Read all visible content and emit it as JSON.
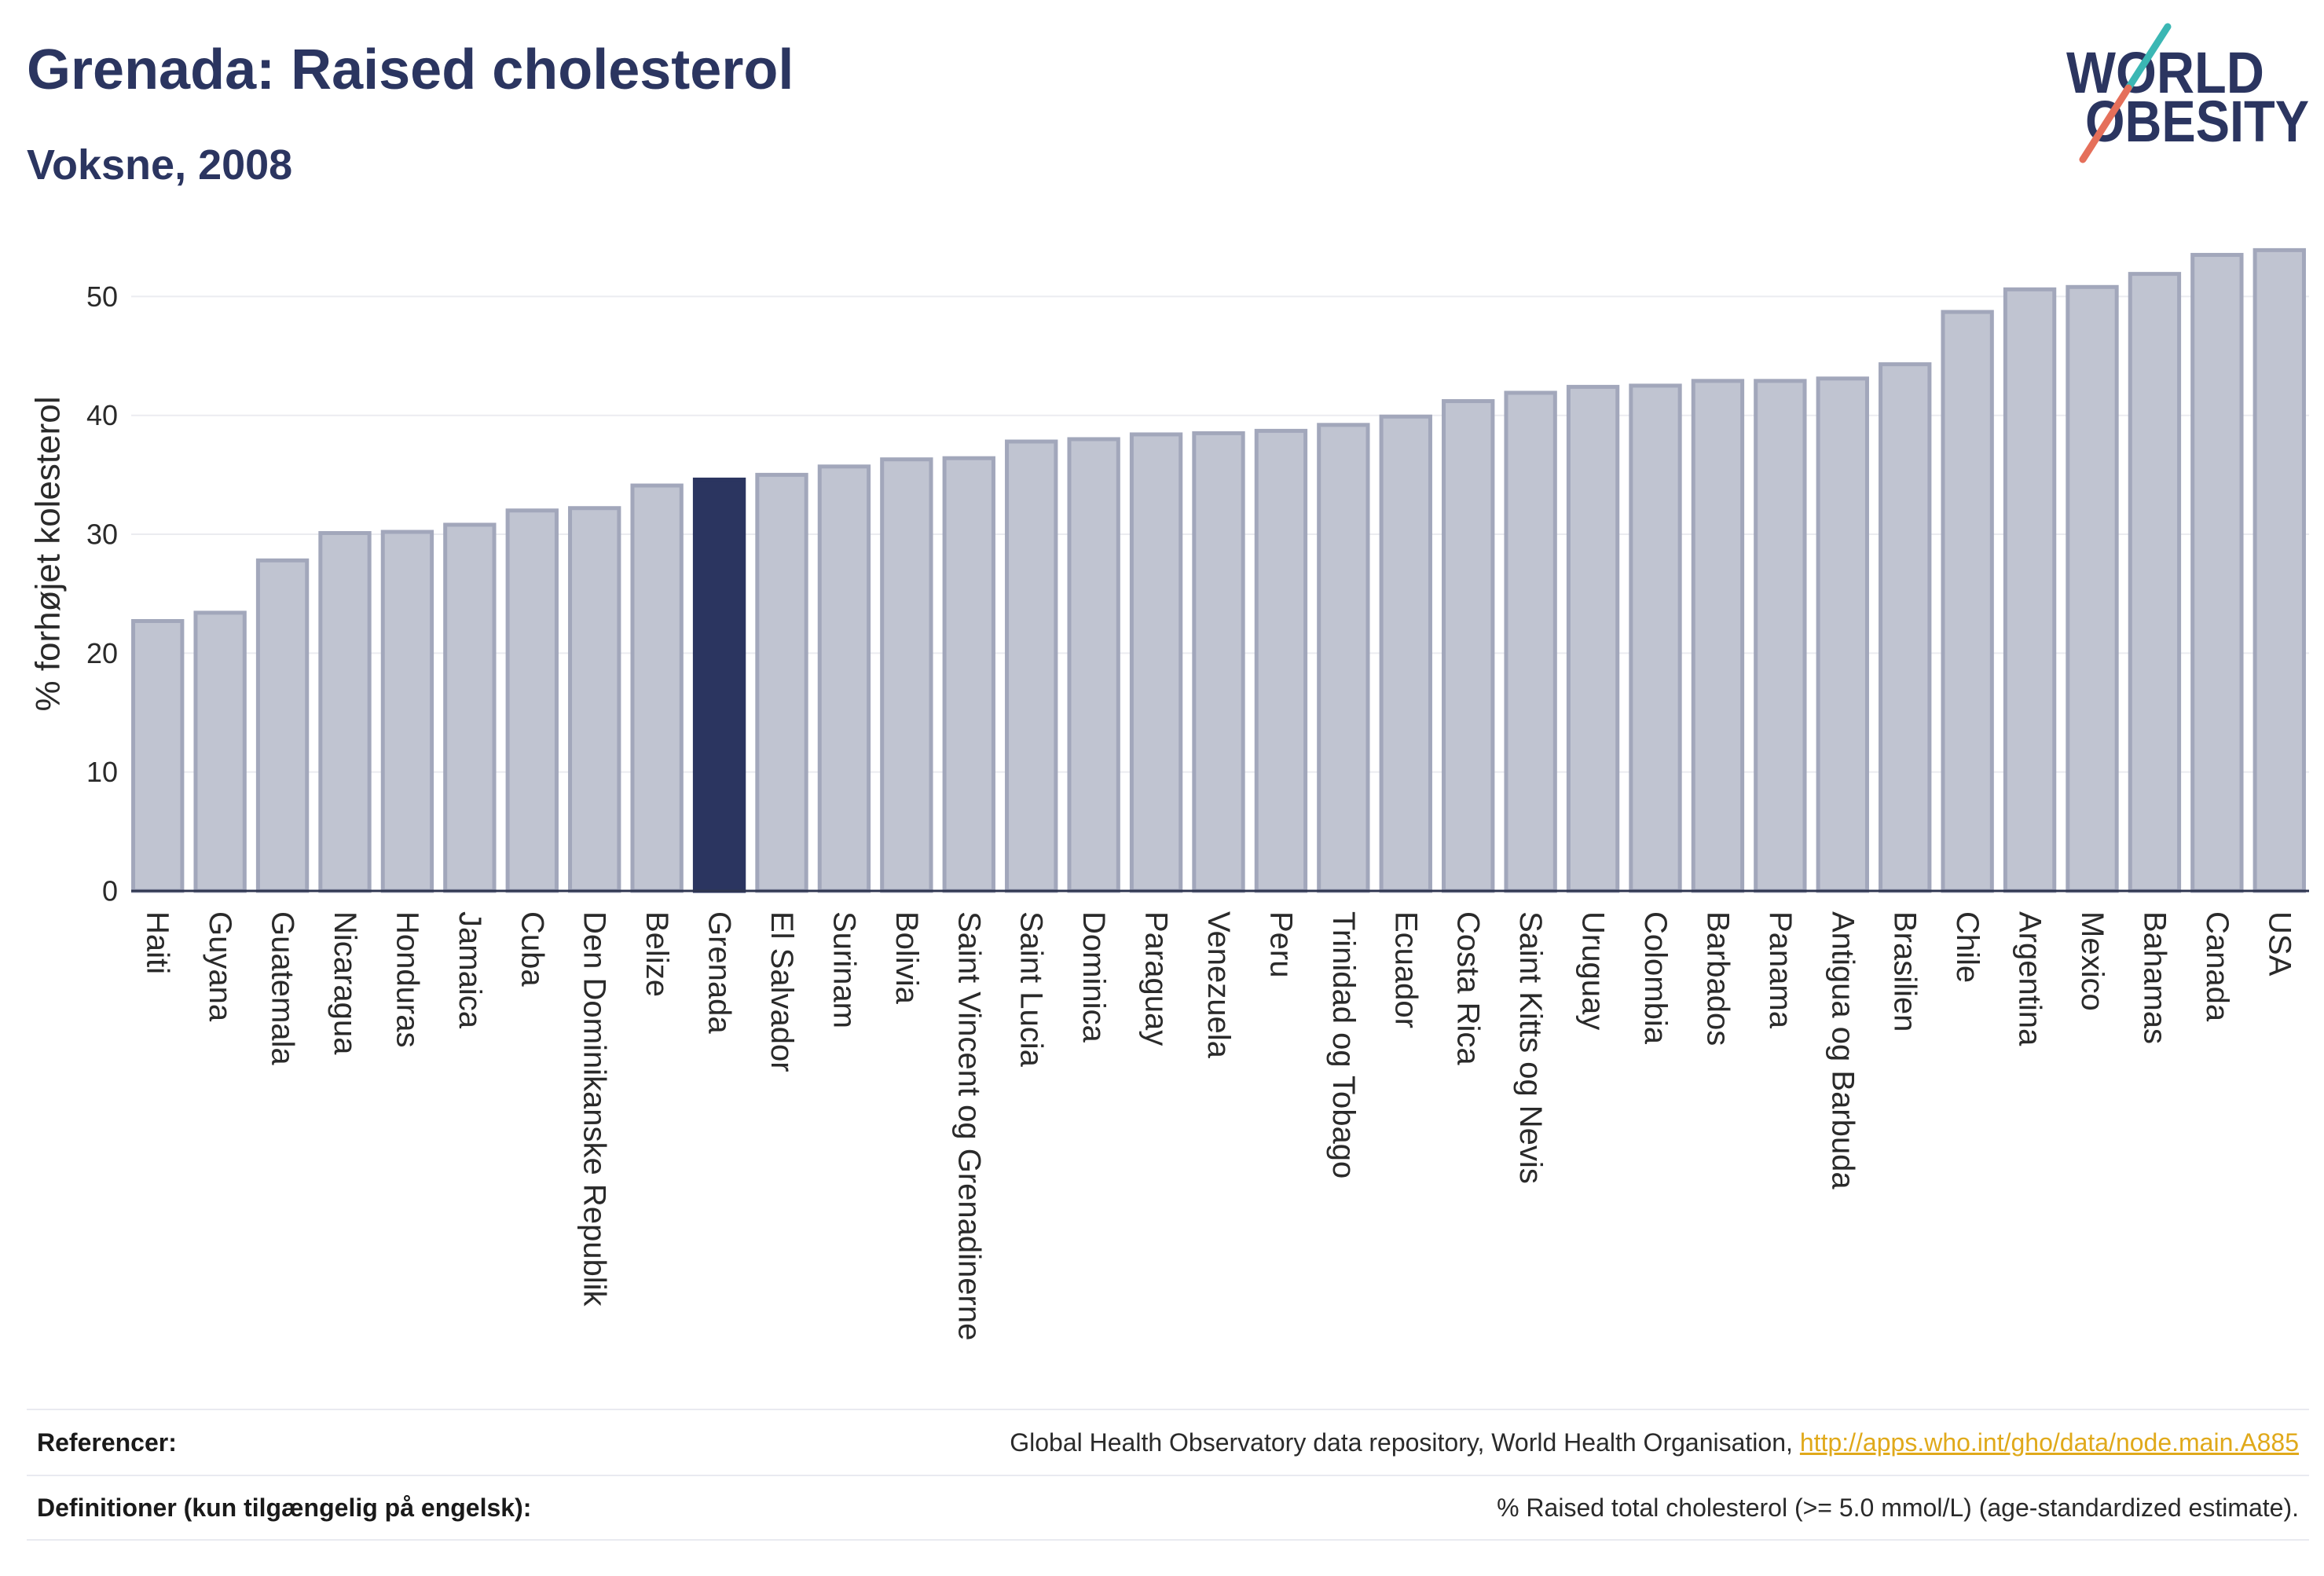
{
  "logo": {
    "line1": "WORLD",
    "line2": "OBESITY",
    "colors": {
      "text": "#2b3560",
      "slash_top": "#3bb7b4",
      "slash_bottom": "#e56f5a"
    }
  },
  "chart_data": {
    "type": "bar",
    "title": "Grenada: Raised cholesterol",
    "subtitle": "Voksne, 2008",
    "ylabel": "% forhøjet kolesterol",
    "ylim": [
      0,
      56.7
    ],
    "yticks": [
      0,
      10,
      20,
      30,
      40,
      50
    ],
    "grid": true,
    "highlight": "Grenada",
    "categories": [
      "Haiti",
      "Guyana",
      "Guatemala",
      "Nicaragua",
      "Honduras",
      "Jamaica",
      "Cuba",
      "Den Dominikanske Republik",
      "Belize",
      "Grenada",
      "El Salvador",
      "Surinam",
      "Bolivia",
      "Saint Vincent og Grenadinerne",
      "Saint Lucia",
      "Dominica",
      "Paraguay",
      "Venezuela",
      "Peru",
      "Trinidad og Tobago",
      "Ecuador",
      "Costa Rica",
      "Saint Kitts og Nevis",
      "Uruguay",
      "Colombia",
      "Barbados",
      "Panama",
      "Antigua og Barbuda",
      "Brasilien",
      "Chile",
      "Argentina",
      "Mexico",
      "Bahamas",
      "Canada",
      "USA"
    ],
    "values": [
      22.7,
      23.4,
      27.8,
      30.1,
      30.2,
      30.8,
      32.0,
      32.2,
      34.1,
      34.6,
      35.0,
      35.7,
      36.3,
      36.4,
      37.8,
      38.0,
      38.4,
      38.5,
      38.7,
      39.2,
      39.9,
      41.2,
      41.9,
      42.4,
      42.5,
      42.9,
      42.9,
      43.1,
      44.3,
      48.7,
      50.6,
      50.8,
      51.9,
      53.5,
      53.9
    ],
    "colors": {
      "bar": "#c0c4d1",
      "bar_border": "#a2a7bb",
      "highlight": "#2b3560",
      "grid": "#ebecf0",
      "title": "#2b3560"
    }
  },
  "footer": {
    "references_label": "Referencer:",
    "references_text": "Global Health Observatory data repository, World Health Organisation,",
    "references_link": "http://apps.who.int/gho/data/node.main.A885",
    "definitions_label": "Definitioner (kun tilgængelig på engelsk):",
    "definitions_text": "% Raised total cholesterol (>= 5.0 mmol/L) (age-standardized estimate)."
  }
}
